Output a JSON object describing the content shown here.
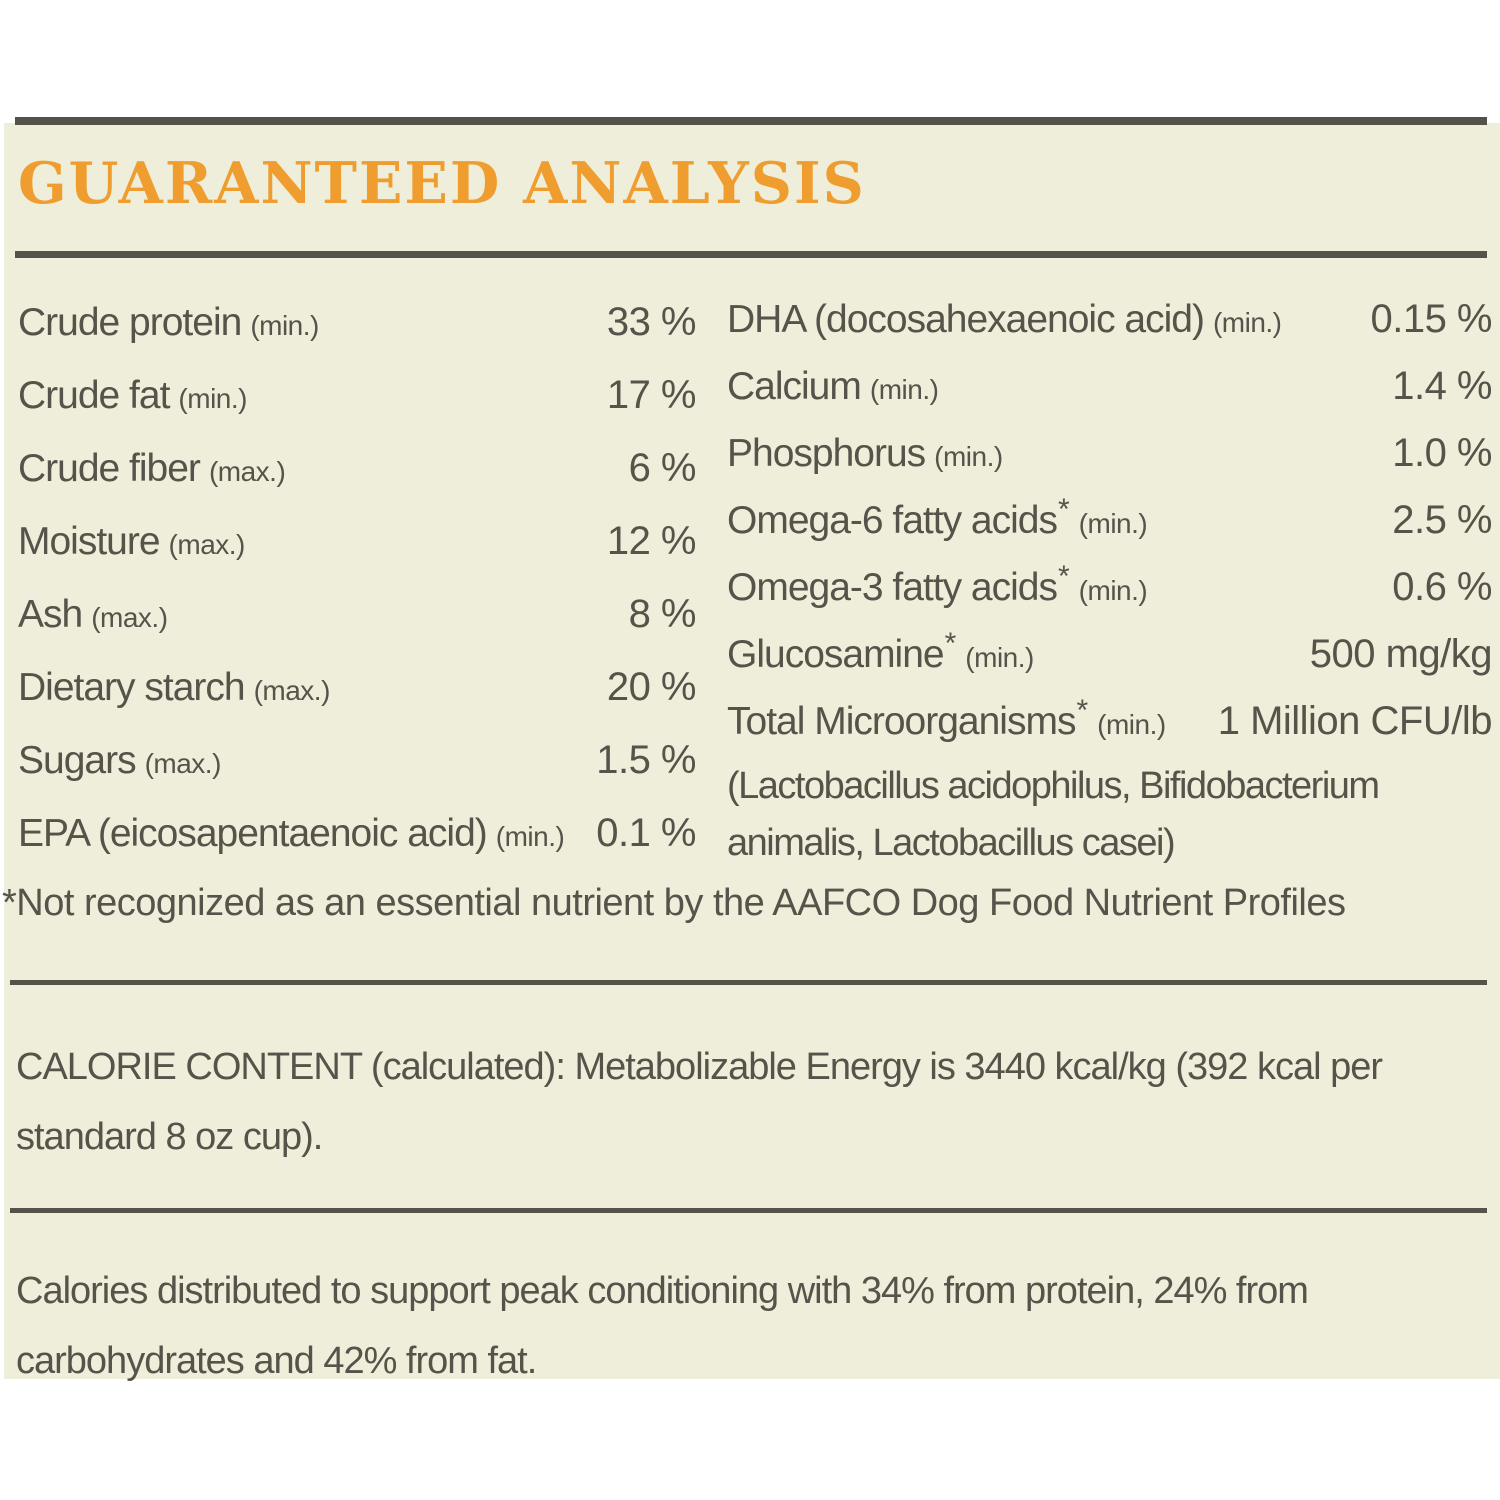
{
  "title": "GUARANTEED ANALYSIS",
  "nutrients": {
    "left": [
      {
        "name": "Crude protein",
        "qualifier": "(min.)",
        "value": "33 %",
        "star": false
      },
      {
        "name": "Crude fat",
        "qualifier": "(min.)",
        "value": "17 %",
        "star": false
      },
      {
        "name": "Crude fiber",
        "qualifier": "(max.)",
        "value": "6 %",
        "star": false
      },
      {
        "name": "Moisture",
        "qualifier": "(max.)",
        "value": "12 %",
        "star": false
      },
      {
        "name": "Ash",
        "qualifier": "(max.)",
        "value": "8 %",
        "star": false
      },
      {
        "name": "Dietary starch",
        "qualifier": "(max.)",
        "value": "20 %",
        "star": false
      },
      {
        "name": "Sugars",
        "qualifier": "(max.)",
        "value": "1.5 %",
        "star": false
      },
      {
        "name": "EPA (eicosapentaenoic acid)",
        "qualifier": "(min.)",
        "value": "0.1 %",
        "star": false
      }
    ],
    "right": [
      {
        "name": "DHA (docosahexaenoic acid)",
        "qualifier": "(min.)",
        "value": "0.15 %",
        "star": false
      },
      {
        "name": "Calcium",
        "qualifier": "(min.)",
        "value": "1.4 %",
        "star": false
      },
      {
        "name": "Phosphorus",
        "qualifier": "(min.)",
        "value": "1.0 %",
        "star": false
      },
      {
        "name": "Omega-6 fatty acids",
        "qualifier": "(min.)",
        "value": "2.5 %",
        "star": true
      },
      {
        "name": "Omega-3 fatty acids",
        "qualifier": "(min.)",
        "value": "0.6 %",
        "star": true
      },
      {
        "name": "Glucosamine",
        "qualifier": "(min.)",
        "value": "500 mg/kg",
        "star": true
      },
      {
        "name": "Total Microorganisms",
        "qualifier": "(min.)",
        "value": "1 Million CFU/lb",
        "star": true,
        "note": "(Lactobacillus acidophilus, Bifidobacterium animalis, Lactobacillus casei)"
      }
    ]
  },
  "footnote": "*Not recognized as an essential nutrient by the AAFCO Dog Food Nutrient Profiles",
  "calorie_content": "CALORIE CONTENT (calculated): Metabolizable Energy is 3440 kcal/kg (392 kcal per standard 8 oz cup).",
  "calorie_distribution": "Calories distributed to support peak conditioning with 34% from protein, 24% from carbohydrates and 42% from fat.",
  "colors": {
    "accent_orange": "#ee9d2e",
    "text_gray": "#55534a",
    "panel_beige": "#efeeda",
    "rule_gray": "#55524a"
  }
}
